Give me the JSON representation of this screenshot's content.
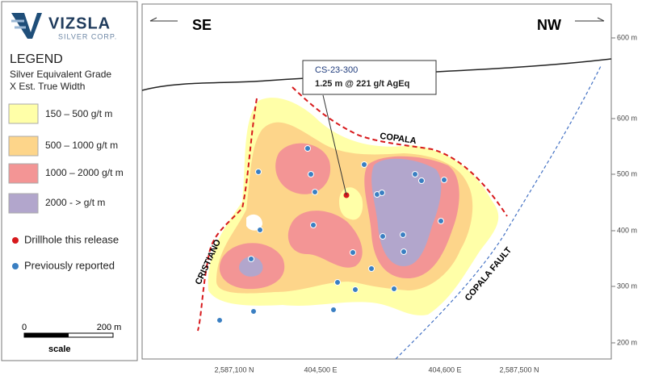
{
  "logo": {
    "name": "VIZSLA",
    "tagline": "SILVER CORP."
  },
  "legend": {
    "title": "LEGEND",
    "subtitle": [
      "Silver Equivalent Grade",
      "X Est. True Width"
    ],
    "items": [
      "150 – 500 g/t m",
      "500 – 1000 g/t m",
      "1000 – 2000 g/t m",
      "2000 - > g/t m"
    ],
    "markers": [
      "Drillhole this release",
      "Previously reported"
    ]
  },
  "scale": {
    "start": "0",
    "end": "200 m",
    "label": "scale"
  },
  "section": {
    "left_direction": "SE",
    "right_direction": "NW",
    "callout": {
      "hole": "CS-23-300",
      "result": "1.25 m @ 221 g/t AgEq"
    },
    "structures": [
      "COPALA",
      "CRISTIANO",
      "COPALA FAULT"
    ],
    "elevation_labels": [
      "600 m",
      "600 m",
      "500 m",
      "400 m",
      "300 m",
      "200 m"
    ],
    "coordinate_labels": [
      "2,587,100 N",
      "404,500 E",
      "404,600 E",
      "2,587,500 N"
    ]
  }
}
